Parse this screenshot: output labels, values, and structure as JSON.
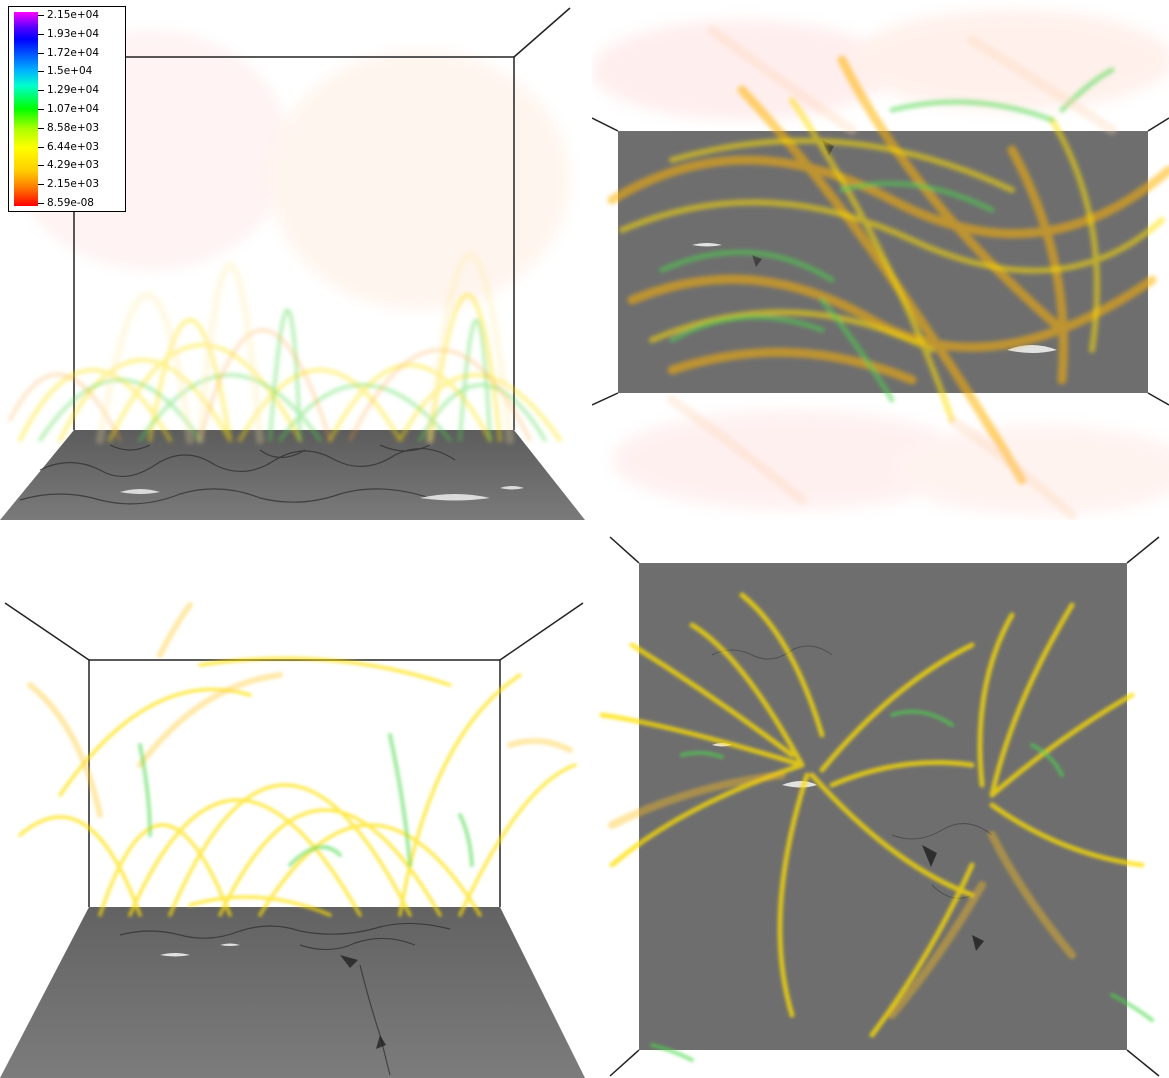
{
  "colorbar": {
    "labels": [
      "2.15e+04",
      "1.93e+04",
      "1.72e+04",
      "1.5e+04",
      "1.29e+04",
      "1.07e+04",
      "8.58e+03",
      "6.44e+03",
      "4.29e+03",
      "2.15e+03",
      "8.59e-08"
    ]
  },
  "colors": {
    "field_yellow": "#ffe600",
    "field_green": "#4cd94c",
    "field_orange": "#ffa500",
    "surface_gray": "#6e6e6e"
  }
}
